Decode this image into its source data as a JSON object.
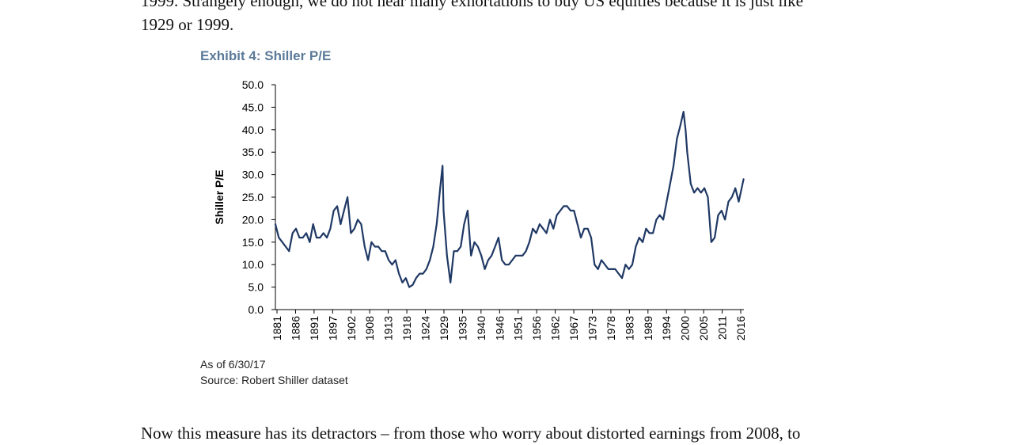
{
  "document": {
    "paragraph_top_line1": "1999. Strangely enough, we do not hear many exhortations to buy US equities because it is just like",
    "paragraph_top_line2": "1929 or 1999.",
    "exhibit_title": "Exhibit 4: Shiller P/E",
    "note_asof": "As of 6/30/17",
    "note_source": "Source: Robert Shiller dataset",
    "paragraph_bottom": "Now this measure has its detractors – from those who worry about distorted earnings from 2008, to"
  },
  "chart_data": {
    "type": "line",
    "title": "",
    "xlabel": "",
    "ylabel": "Shiller P/E",
    "ylim": [
      0,
      50
    ],
    "xlim": [
      1881,
      2017.5
    ],
    "y_ticks": [
      "0.0",
      "5.0",
      "10.0",
      "15.0",
      "20.0",
      "25.0",
      "30.0",
      "35.0",
      "40.0",
      "45.0",
      "50.0"
    ],
    "x_ticks": [
      "1881",
      "1886",
      "1891",
      "1897",
      "1902",
      "1908",
      "1913",
      "1918",
      "1924",
      "1929",
      "1935",
      "1940",
      "1946",
      "1951",
      "1956",
      "1962",
      "1967",
      "1973",
      "1978",
      "1983",
      "1989",
      "1994",
      "2000",
      "2005",
      "2011",
      "2016"
    ],
    "line_color": "#1f3864",
    "grid": false,
    "legend": "none",
    "series": [
      {
        "x": [
          1881,
          1882,
          1883,
          1884,
          1885,
          1886,
          1887,
          1888,
          1889,
          1890,
          1891,
          1892,
          1893,
          1894,
          1895,
          1896,
          1897,
          1898,
          1899,
          1900,
          1901,
          1902,
          1903,
          1904,
          1905,
          1906,
          1907,
          1908,
          1909,
          1910,
          1911,
          1912,
          1913,
          1914,
          1915,
          1916,
          1917,
          1918,
          1919,
          1920,
          1921,
          1922,
          1923,
          1924,
          1925,
          1926,
          1927,
          1928,
          1929,
          1929.7,
          1930,
          1931,
          1932,
          1933,
          1934,
          1935,
          1936,
          1937,
          1938,
          1939,
          1940,
          1941,
          1942,
          1943,
          1944,
          1945,
          1946,
          1947,
          1948,
          1949,
          1950,
          1951,
          1952,
          1953,
          1954,
          1955,
          1956,
          1957,
          1958,
          1959,
          1960,
          1961,
          1962,
          1963,
          1964,
          1965,
          1966,
          1967,
          1968,
          1969,
          1970,
          1971,
          1972,
          1973,
          1974,
          1975,
          1976,
          1977,
          1978,
          1979,
          1980,
          1981,
          1982,
          1983,
          1984,
          1985,
          1986,
          1987,
          1988,
          1989,
          1990,
          1991,
          1992,
          1993,
          1994,
          1995,
          1996,
          1997,
          1998,
          1999,
          1999.9,
          2000.5,
          2001,
          2002,
          2003,
          2004,
          2005,
          2006,
          2007,
          2008,
          2009,
          2010,
          2011,
          2012,
          2013,
          2014,
          2015,
          2016,
          2017.4
        ],
        "values": [
          19,
          16,
          15,
          14,
          13,
          17,
          18,
          16,
          16,
          17,
          15,
          19,
          16,
          16,
          17,
          16,
          18,
          22,
          23,
          19,
          22,
          25,
          17,
          18,
          20,
          19,
          14,
          11,
          15,
          14,
          14,
          13,
          13,
          11,
          10,
          11,
          8,
          6,
          7,
          5,
          5.5,
          7,
          8,
          8,
          9,
          11,
          14,
          19,
          27,
          32,
          22,
          12,
          6,
          13,
          13,
          14,
          19,
          22,
          12,
          15,
          14,
          12,
          9,
          11,
          12,
          14,
          16,
          11,
          10,
          10,
          11,
          12,
          12,
          12,
          13,
          15,
          18,
          17,
          19,
          18,
          17,
          20,
          18,
          21,
          22,
          23,
          23,
          22,
          22,
          19,
          16,
          18,
          18,
          16,
          10,
          9,
          11,
          10,
          9,
          9,
          9,
          8,
          7,
          10,
          9,
          10,
          14,
          16,
          15,
          18,
          17,
          17,
          20,
          21,
          20,
          24,
          28,
          32,
          38,
          41,
          44,
          40,
          35,
          28,
          26,
          27,
          26,
          27,
          25,
          15,
          16,
          21,
          22,
          20,
          24,
          25,
          27,
          24,
          29
        ]
      }
    ]
  }
}
